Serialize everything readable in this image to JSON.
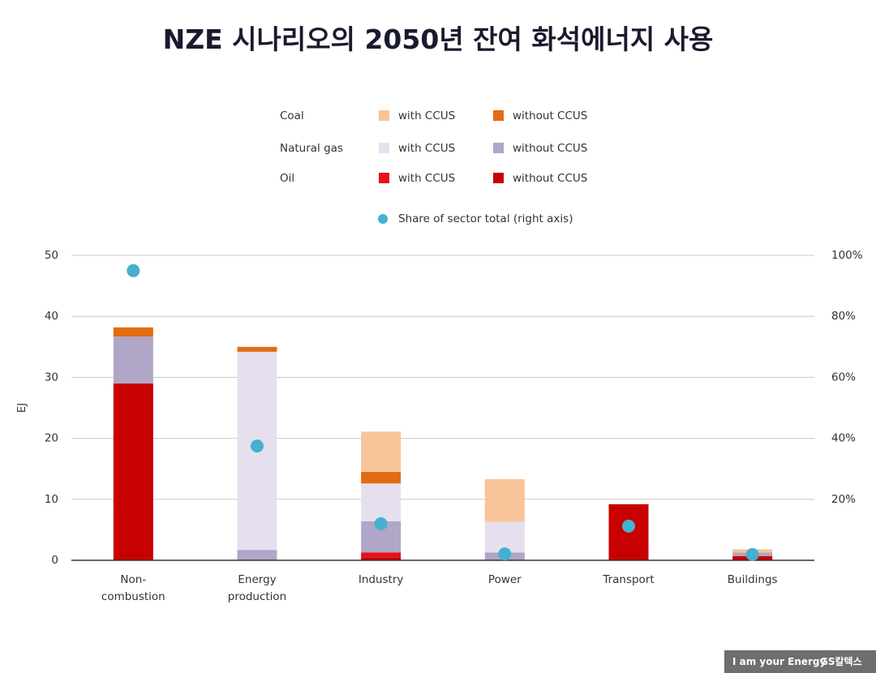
{
  "chart_data": {
    "type": "bar",
    "stacked": true,
    "title": "NZE 시나리오의 2050년 잔여 화석에너지 사용",
    "y_label": "EJ",
    "categories": [
      "Non-\ncombustion",
      "Energy\nproduction",
      "Industry",
      "Power",
      "Transport",
      "Buildings"
    ],
    "fuels": [
      {
        "name": "Coal",
        "series": [
          {
            "name": "with CCUS",
            "color": "#f8c499",
            "values": [
              0,
              0,
              6.6,
              7.0,
              0,
              0.5
            ]
          },
          {
            "name": "without CCUS",
            "color": "#e26c12",
            "values": [
              1.5,
              0.8,
              1.9,
              0,
              0,
              0
            ]
          }
        ]
      },
      {
        "name": "Natural gas",
        "series": [
          {
            "name": "with CCUS",
            "color": "#e6e0ee",
            "values": [
              0,
              32.5,
              6.2,
              5.0,
              0,
              0
            ]
          },
          {
            "name": "without CCUS",
            "color": "#b0a6c8",
            "values": [
              7.7,
              1.7,
              5.1,
              1.3,
              0,
              0.6
            ]
          }
        ]
      },
      {
        "name": "Oil",
        "series": [
          {
            "name": "with CCUS",
            "color": "#e8101a",
            "values": [
              0,
              0,
              0.8,
              0,
              0,
              0
            ]
          },
          {
            "name": "without CCUS",
            "color": "#c80000",
            "values": [
              29.0,
              0,
              0.5,
              0,
              9.2,
              0.7
            ]
          }
        ]
      }
    ],
    "share": {
      "type": "scatter",
      "name": "Share of sector total (right axis)",
      "color": "#45b0d0",
      "axis": "y2",
      "values": [
        95,
        37.5,
        12,
        2.1,
        11.2,
        1.9
      ]
    },
    "ylim": [
      0,
      50
    ],
    "yticks": [
      0,
      10,
      20,
      30,
      40,
      50
    ],
    "y2lim": [
      0,
      100
    ],
    "y2ticks": [
      {
        "value": 20,
        "label": "20%"
      },
      {
        "value": 40,
        "label": "40%"
      },
      {
        "value": 60,
        "label": "60%"
      },
      {
        "value": 80,
        "label": "80%"
      },
      {
        "value": 100,
        "label": "100%"
      }
    ],
    "grid": true
  },
  "footer": {
    "slogan": "I am your Energy",
    "brand": "GS칼텍스"
  }
}
